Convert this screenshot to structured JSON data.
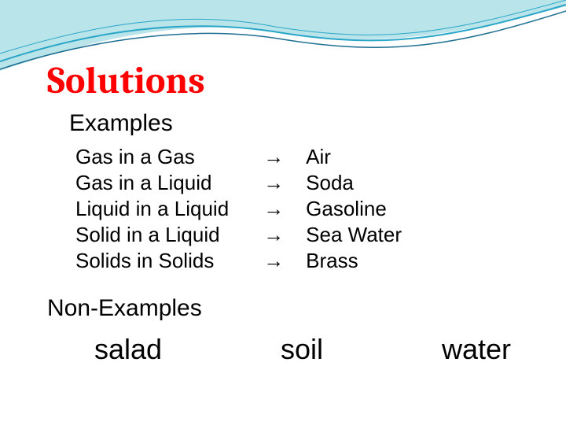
{
  "swoosh": {
    "fill": "#b9e4e9",
    "stroke": "#2aa6c8",
    "line": "#1f6f92"
  },
  "title": {
    "text": "Solutions",
    "color": "#ff0000",
    "fontsize": 48
  },
  "examples": {
    "heading": "Examples",
    "heading_color": "#000000",
    "heading_fontsize": 30,
    "row_color": "#000000",
    "row_fontsize": 26,
    "arrow": "→",
    "rows": [
      {
        "left": "Gas in a Gas",
        "right": "Air"
      },
      {
        "left": "Gas in a Liquid",
        "right": "Soda"
      },
      {
        "left": "Liquid in a Liquid",
        "right": "Gasoline"
      },
      {
        "left": "Solid in a Liquid",
        "right": "Sea Water"
      },
      {
        "left": "Solids in Solids",
        "right": "Brass"
      }
    ]
  },
  "nonexamples": {
    "heading": "Non-Examples",
    "heading_color": "#000000",
    "heading_fontsize": 30,
    "items": [
      "salad",
      "soil",
      "water"
    ],
    "item_color": "#000000",
    "item_fontsize": 36
  }
}
